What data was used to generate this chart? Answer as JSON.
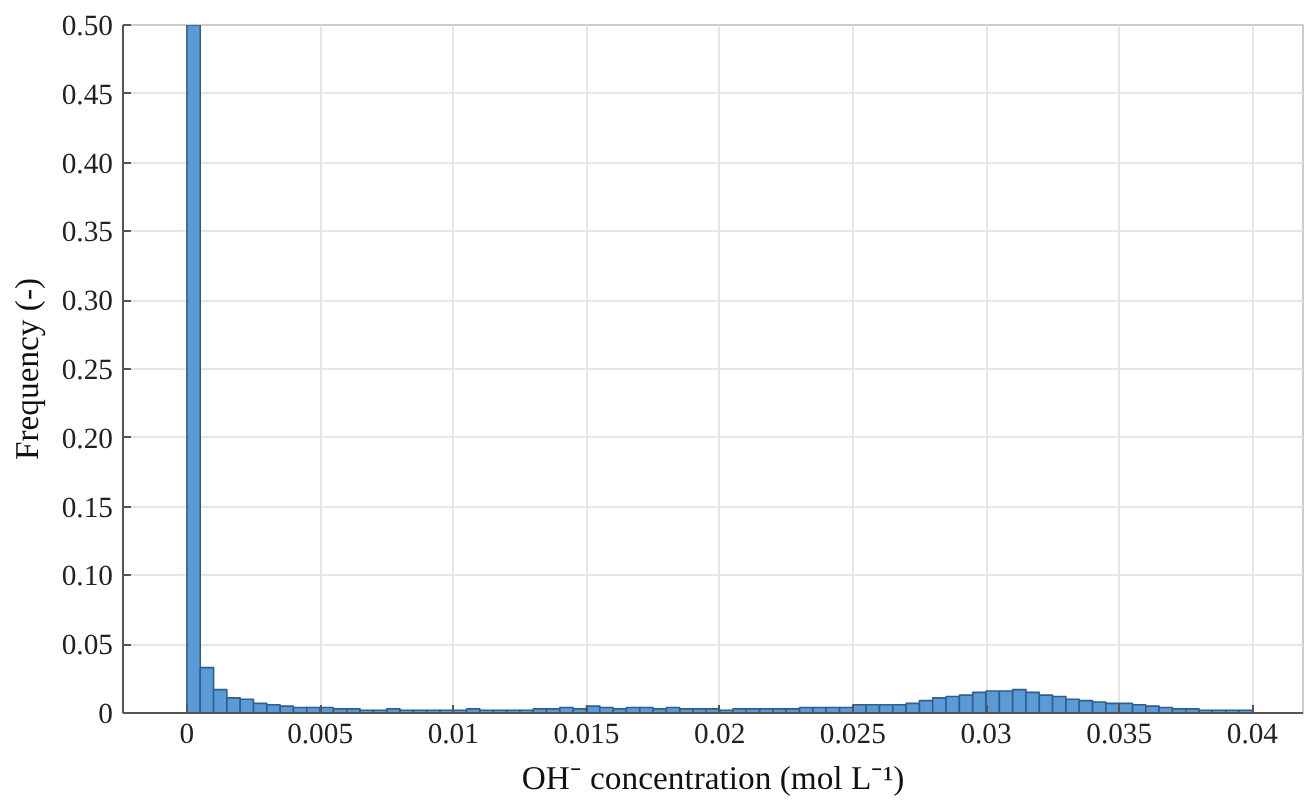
{
  "chart_data": {
    "type": "histogram",
    "xlabel": "OH⁻ concentration (mol L⁻¹)",
    "ylabel": "Frequency (-)",
    "color": "#5b9bd5",
    "grid": true,
    "bins": [
      0,
      0.0005,
      0.001,
      0.0015,
      0.002,
      0.0025,
      0.003,
      0.0035,
      0.004,
      0.0045,
      0.005,
      0.0055,
      0.006,
      0.0065,
      0.007,
      0.0075,
      0.008,
      0.0085,
      0.009,
      0.0095,
      0.01,
      0.0105,
      0.011,
      0.0115,
      0.012,
      0.0125,
      0.013,
      0.0135,
      0.014,
      0.0145,
      0.015,
      0.0155,
      0.016,
      0.0165,
      0.017,
      0.0175,
      0.018,
      0.0185,
      0.019,
      0.0195,
      0.02,
      0.0205,
      0.021,
      0.0215,
      0.022,
      0.0225,
      0.023,
      0.0235,
      0.024,
      0.0245,
      0.025,
      0.0255,
      0.026,
      0.0265,
      0.027,
      0.0275,
      0.028,
      0.0285,
      0.029,
      0.0295,
      0.03,
      0.0305,
      0.031,
      0.0315,
      0.032,
      0.0325,
      0.033,
      0.0335,
      0.034,
      0.0345,
      0.035,
      0.0355,
      0.036,
      0.0365,
      0.037,
      0.0375,
      0.038,
      0.0385,
      0.039,
      0.0395,
      0.04
    ],
    "values": [
      0.5,
      0.033,
      0.017,
      0.011,
      0.01,
      0.007,
      0.006,
      0.005,
      0.004,
      0.004,
      0.004,
      0.003,
      0.003,
      0.002,
      0.002,
      0.003,
      0.002,
      0.002,
      0.002,
      0.002,
      0.002,
      0.003,
      0.002,
      0.002,
      0.002,
      0.002,
      0.003,
      0.003,
      0.004,
      0.003,
      0.005,
      0.004,
      0.003,
      0.004,
      0.004,
      0.003,
      0.004,
      0.003,
      0.003,
      0.003,
      0.002,
      0.003,
      0.003,
      0.003,
      0.003,
      0.003,
      0.004,
      0.004,
      0.004,
      0.004,
      0.006,
      0.006,
      0.006,
      0.006,
      0.007,
      0.009,
      0.011,
      0.012,
      0.013,
      0.015,
      0.016,
      0.016,
      0.017,
      0.015,
      0.013,
      0.012,
      0.01,
      0.009,
      0.008,
      0.007,
      0.007,
      0.006,
      0.005,
      0.004,
      0.003,
      0.003,
      0.002,
      0.002,
      0.002,
      0.002
    ],
    "xlim": [
      -0.0024,
      0.0419
    ],
    "ylim": [
      0,
      0.5
    ],
    "xticks": [
      0,
      0.005,
      0.01,
      0.015,
      0.02,
      0.025,
      0.03,
      0.035,
      0.04
    ],
    "yticks": [
      0,
      {
        "value": 0.05,
        "label": "0.05"
      },
      {
        "value": 0.1,
        "label": "0.10"
      },
      {
        "value": 0.15,
        "label": "0.15"
      },
      {
        "value": 0.2,
        "label": "0.20"
      },
      {
        "value": 0.25,
        "label": "0.25"
      },
      {
        "value": 0.3,
        "label": "0.30"
      },
      {
        "value": 0.35,
        "label": "0.35"
      },
      {
        "value": 0.4,
        "label": "0.40"
      },
      {
        "value": 0.45,
        "label": "0.45"
      },
      {
        "value": 0.5,
        "label": "0.50"
      }
    ]
  }
}
